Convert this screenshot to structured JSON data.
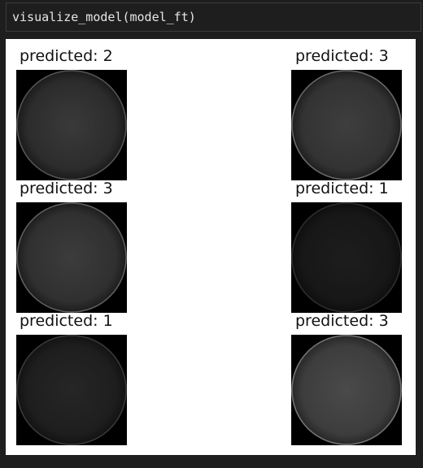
{
  "code_cell": {
    "source": "visualize_model(model_ft)"
  },
  "panels": [
    {
      "title": "predicted: 2",
      "brightness": "medium"
    },
    {
      "title": "predicted: 3",
      "brightness": "medium"
    },
    {
      "title": "predicted: 3",
      "brightness": "medium"
    },
    {
      "title": "predicted: 1",
      "brightness": "dark"
    },
    {
      "title": "predicted: 1",
      "brightness": "dark"
    },
    {
      "title": "predicted: 3",
      "brightness": "bright"
    }
  ],
  "colors": {
    "background": "#1e1e1e",
    "output_background": "#ffffff",
    "code_text": "#e6e6e6"
  }
}
